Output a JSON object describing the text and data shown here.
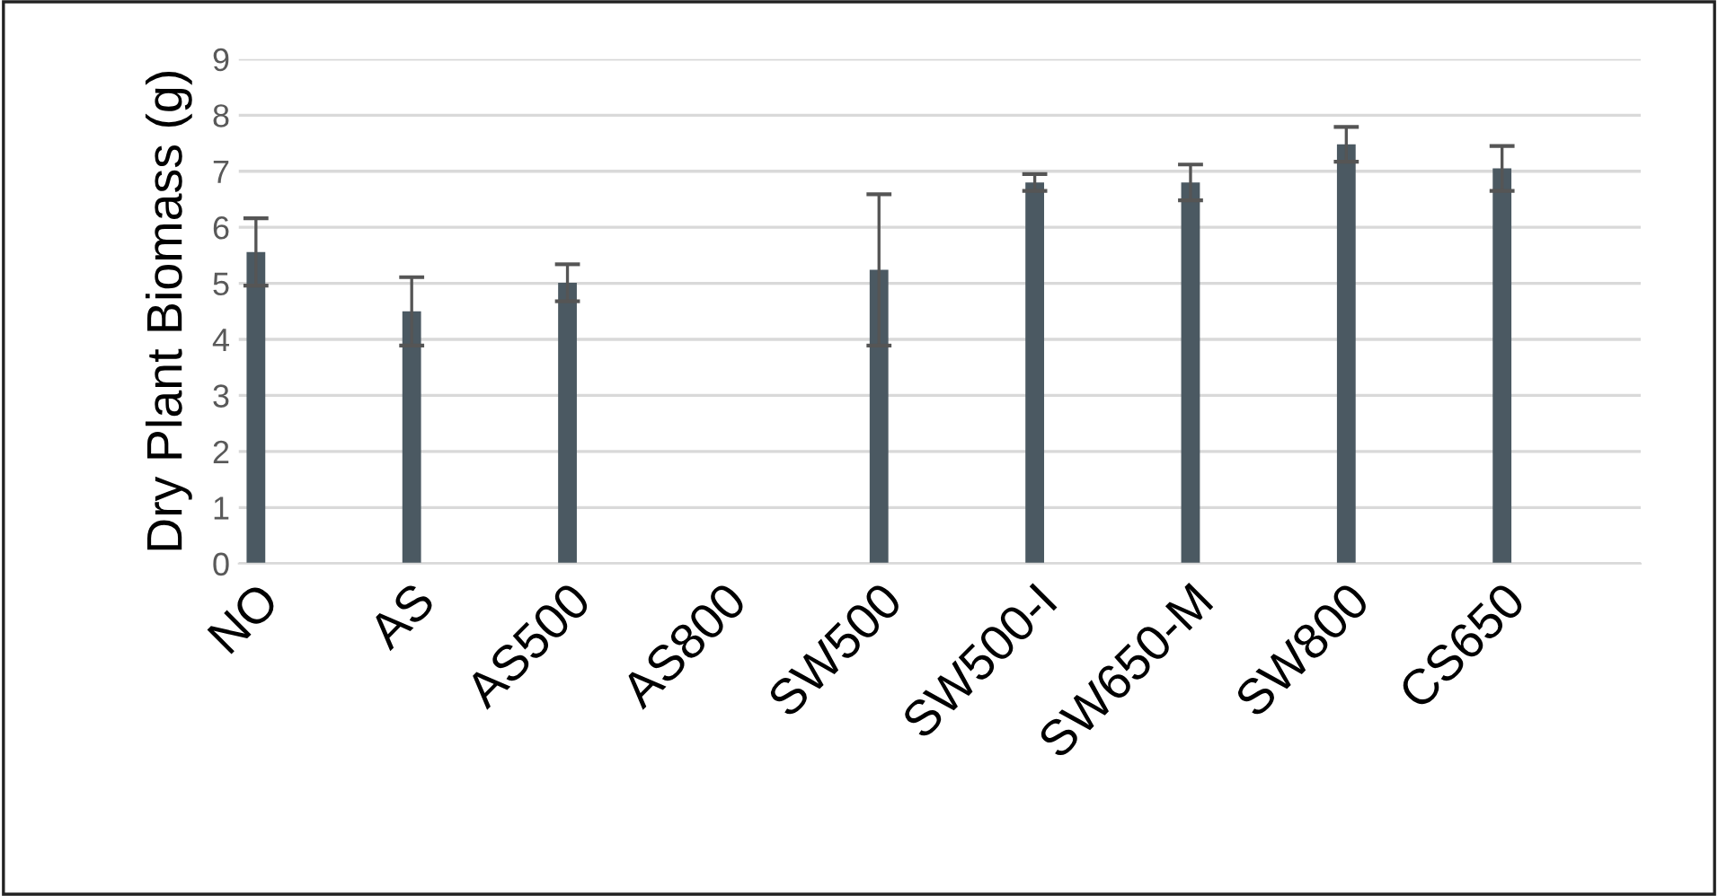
{
  "chart_data": {
    "type": "bar",
    "ylabel": "Dry Plant Biomass (g)",
    "categories": [
      "NO",
      "AS",
      "AS500",
      "AS800",
      "SW500",
      "SW500-I",
      "SW650-M",
      "SW800",
      "CS650"
    ],
    "series": [
      {
        "color": "#4b5962",
        "values": [
          5.56,
          4.5,
          5.01,
          null,
          5.24,
          6.8,
          6.8,
          7.48,
          7.05
        ],
        "errors": [
          0.6,
          0.61,
          0.33,
          null,
          1.35,
          0.15,
          0.32,
          0.31,
          0.4
        ]
      }
    ],
    "ylim": [
      0,
      9
    ],
    "yticks": [
      0,
      1,
      2,
      3,
      4,
      5,
      6,
      7,
      8,
      9
    ],
    "grid": "y"
  }
}
